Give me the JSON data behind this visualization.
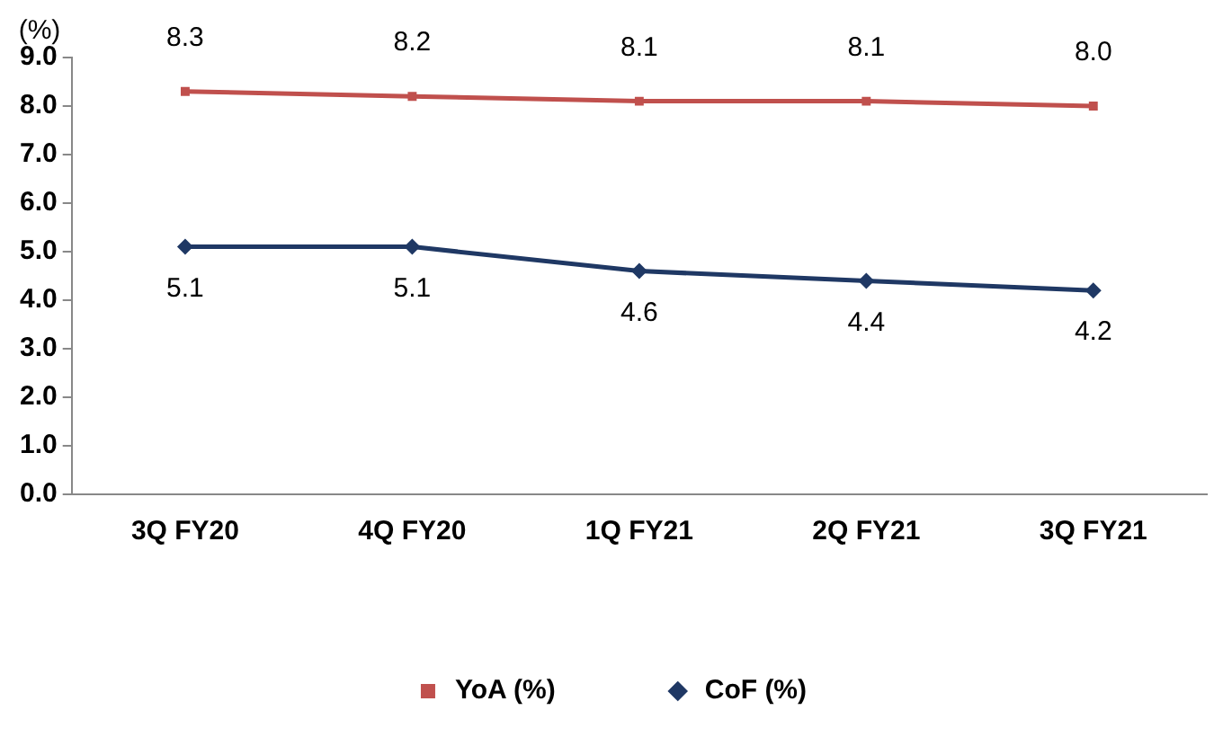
{
  "chart_data": {
    "type": "line",
    "ylabel": "(%)",
    "categories": [
      "3Q FY20",
      "4Q FY20",
      "1Q FY21",
      "2Q FY21",
      "3Q FY21"
    ],
    "series": [
      {
        "name": "YoA (%)",
        "color": "#c0504d",
        "marker": "square",
        "values": [
          8.3,
          8.2,
          8.1,
          8.1,
          8.0
        ],
        "value_labels": [
          "8.3",
          "8.2",
          "8.1",
          "8.1",
          "8.0"
        ]
      },
      {
        "name": "CoF (%)",
        "color": "#1f3864",
        "marker": "diamond",
        "values": [
          5.1,
          5.1,
          4.6,
          4.4,
          4.2
        ],
        "value_labels": [
          "5.1",
          "5.1",
          "4.6",
          "4.4",
          "4.2"
        ]
      }
    ],
    "ylim": [
      0,
      9
    ],
    "yticks": [
      {
        "value": 0,
        "label": "0.0"
      },
      {
        "value": 1,
        "label": "1.0"
      },
      {
        "value": 2,
        "label": "2.0"
      },
      {
        "value": 3,
        "label": "3.0"
      },
      {
        "value": 4,
        "label": "4.0"
      },
      {
        "value": 5,
        "label": "5.0"
      },
      {
        "value": 6,
        "label": "6.0"
      },
      {
        "value": 7,
        "label": "7.0"
      },
      {
        "value": 8,
        "label": "8.0"
      },
      {
        "value": 9,
        "label": "9.0"
      }
    ],
    "grid": false,
    "legend": "bottom",
    "line_style": "solid"
  }
}
